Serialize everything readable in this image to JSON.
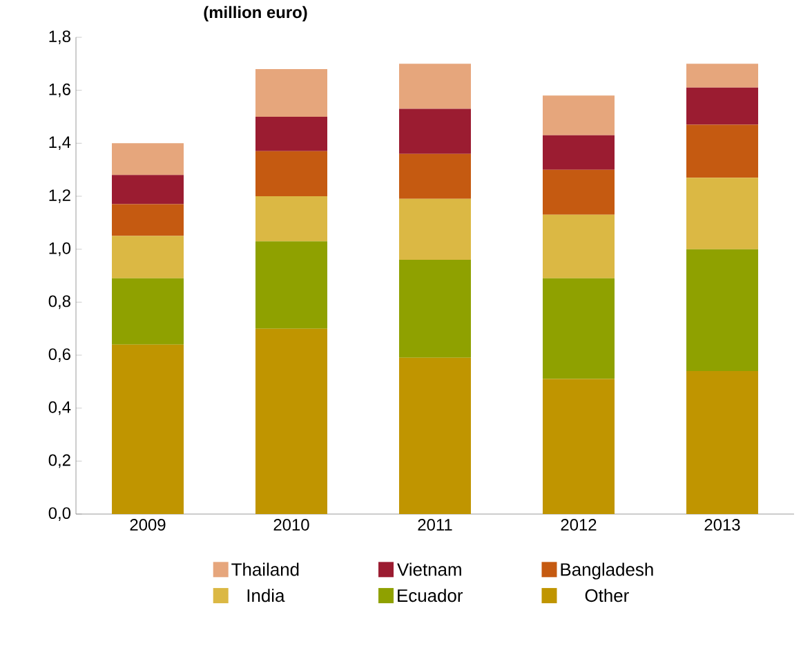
{
  "chart_data": {
    "type": "bar",
    "stacked": true,
    "title": "(million euro)",
    "categories": [
      "2009",
      "2010",
      "2011",
      "2012",
      "2013"
    ],
    "series": [
      {
        "name": "Other",
        "color": "#c09500",
        "values": [
          0.64,
          0.7,
          0.59,
          0.51,
          0.54
        ]
      },
      {
        "name": "Ecuador",
        "color": "#8fa100",
        "values": [
          0.25,
          0.33,
          0.37,
          0.38,
          0.46
        ]
      },
      {
        "name": "India",
        "color": "#dbb844",
        "values": [
          0.16,
          0.17,
          0.23,
          0.24,
          0.27
        ]
      },
      {
        "name": "Bangladesh",
        "color": "#c55a11",
        "values": [
          0.12,
          0.17,
          0.17,
          0.17,
          0.2
        ]
      },
      {
        "name": "Vietnam",
        "color": "#9b1c31",
        "values": [
          0.11,
          0.13,
          0.17,
          0.13,
          0.14
        ]
      },
      {
        "name": "Thailand",
        "color": "#e6a67c",
        "values": [
          0.12,
          0.18,
          0.17,
          0.15,
          0.09
        ]
      }
    ],
    "ylim": [
      0,
      1.8
    ],
    "yticks": [
      {
        "value": 0,
        "label": "0,0"
      },
      {
        "value": 0.2,
        "label": "0,2"
      },
      {
        "value": 0.4,
        "label": "0,4"
      },
      {
        "value": 0.6,
        "label": "0,6"
      },
      {
        "value": 0.8,
        "label": "0,8"
      },
      {
        "value": 1.0,
        "label": "1,0"
      },
      {
        "value": 1.2,
        "label": "1,2"
      },
      {
        "value": 1.4,
        "label": "1,4"
      },
      {
        "value": 1.6,
        "label": "1,6"
      },
      {
        "value": 1.8,
        "label": "1,8"
      }
    ],
    "legend": "bottom"
  }
}
